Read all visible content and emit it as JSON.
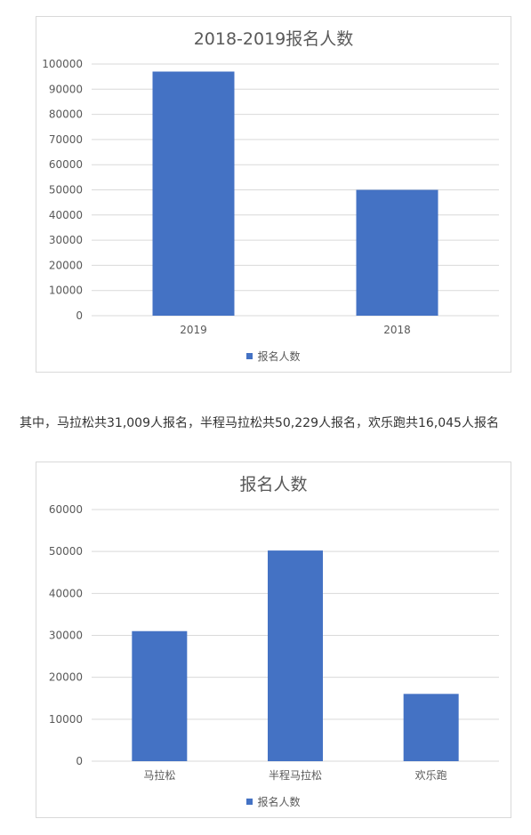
{
  "paragraph": "其中，马拉松共31,009人报名，半程马拉松共50,229人报名，欢乐跑共16,045人报名",
  "colors": {
    "bar": "#4472c4",
    "grid": "#d9d9d9",
    "text": "#595959"
  },
  "chart_data": [
    {
      "type": "bar",
      "title": "2018-2019报名人数",
      "categories": [
        "2019",
        "2018"
      ],
      "series": [
        {
          "name": "报名人数",
          "values": [
            97000,
            50000
          ]
        }
      ],
      "ylim": [
        0,
        100000
      ],
      "yticks": [
        "0",
        "10000",
        "20000",
        "30000",
        "40000",
        "50000",
        "60000",
        "70000",
        "80000",
        "90000",
        "100000"
      ],
      "grid": true,
      "legend": "bottom"
    },
    {
      "type": "bar",
      "title": "报名人数",
      "categories": [
        "马拉松",
        "半程马拉松",
        "欢乐跑"
      ],
      "series": [
        {
          "name": "报名人数",
          "values": [
            31009,
            50229,
            16045
          ]
        }
      ],
      "ylim": [
        0,
        60000
      ],
      "yticks": [
        "0",
        "10000",
        "20000",
        "30000",
        "40000",
        "50000",
        "60000"
      ],
      "grid": true,
      "legend": "bottom"
    }
  ]
}
